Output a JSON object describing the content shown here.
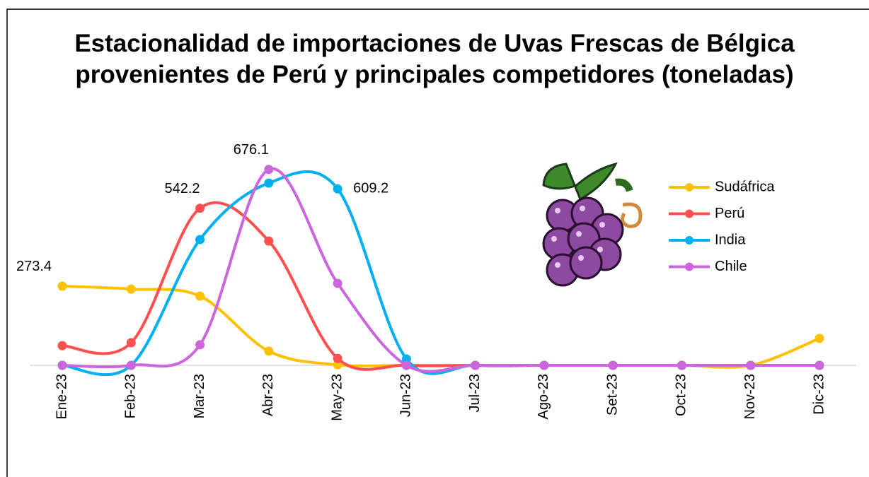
{
  "chart_data": {
    "type": "line",
    "title": "Estacionalidad de importaciones de Uvas Frescas de Bélgica provenientes de Perú y principales competidores (toneladas)",
    "categories": [
      "Ene-23",
      "Feb-23",
      "Mar-23",
      "Abr-23",
      "May-23",
      "Jun-23",
      "Jul-23",
      "Ago-23",
      "Set-23",
      "Oct-23",
      "Nov-23",
      "Dic-23"
    ],
    "ylim": [
      0,
      700
    ],
    "smooth": true,
    "series": [
      {
        "name": "Sudáfrica",
        "color": "#ffc000",
        "values": [
          273.4,
          263,
          239,
          49,
          2,
          0,
          0,
          0,
          0,
          0,
          0,
          93
        ],
        "data_labels": [
          0
        ]
      },
      {
        "name": "Perú",
        "color": "#ff5050",
        "values": [
          68,
          78,
          542.2,
          429,
          24,
          0,
          0,
          0,
          0,
          0,
          0,
          0
        ],
        "data_labels": [
          2
        ]
      },
      {
        "name": "India",
        "color": "#00b0f0",
        "values": [
          0,
          0,
          434,
          629,
          609.2,
          22,
          0,
          0,
          0,
          0,
          0,
          0
        ],
        "data_labels": [
          4
        ]
      },
      {
        "name": "Chile",
        "color": "#cc66dd",
        "values": [
          0,
          0,
          71,
          676.1,
          283,
          0,
          0,
          0,
          0,
          0,
          0,
          0
        ],
        "data_labels": [
          3
        ]
      }
    ]
  }
}
